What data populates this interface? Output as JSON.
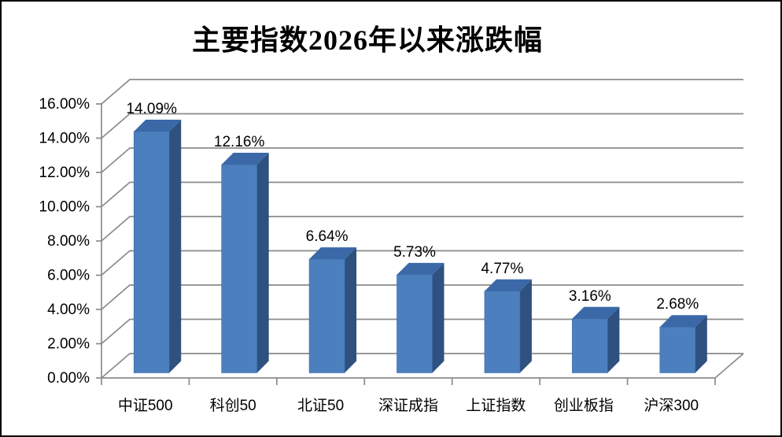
{
  "chart_data": {
    "type": "bar",
    "style": "3d-column",
    "title": "主要指数2026年以来涨跌幅",
    "categories": [
      "中证500",
      "科创50",
      "北证50",
      "深证成指",
      "上证指数",
      "创业板指",
      "沪深300"
    ],
    "values": [
      14.09,
      12.16,
      6.64,
      5.73,
      4.77,
      3.16,
      2.68
    ],
    "data_labels": [
      "14.09%",
      "12.16%",
      "6.64%",
      "5.73%",
      "4.77%",
      "3.16%",
      "2.68%"
    ],
    "xlabel": "",
    "ylabel": "",
    "ylim": [
      0,
      16
    ],
    "ytick_step": 2,
    "ytick_labels": [
      "0.00%",
      "2.00%",
      "4.00%",
      "6.00%",
      "8.00%",
      "10.00%",
      "12.00%",
      "14.00%",
      "16.00%"
    ],
    "grid": true,
    "legend": "none",
    "colors": {
      "bar_front": "#4C7FBE",
      "bar_top": "#3B69A8",
      "bar_side": "#2E517F",
      "gridline": "#8B8B8B",
      "axis": "#8B8B8B",
      "text": "#000000",
      "background": "#FFFFFF",
      "frame_border": "#000000"
    }
  }
}
